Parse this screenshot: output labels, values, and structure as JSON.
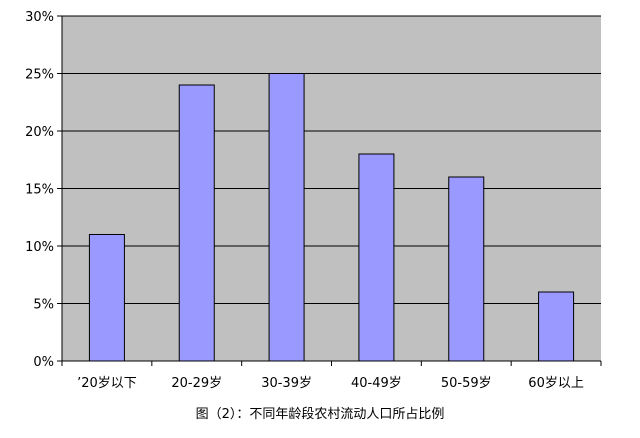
{
  "chart_data": {
    "type": "bar",
    "categories": [
      "’20岁以下",
      "20-29岁",
      "30-39岁",
      "40-49岁",
      "50-59岁",
      "60岁以上"
    ],
    "values": [
      11,
      24,
      25,
      18,
      16,
      6
    ],
    "y_ticks": [
      "0%",
      "5%",
      "10%",
      "15%",
      "20%",
      "25%",
      "30%"
    ],
    "ylim": [
      0,
      30
    ],
    "caption": "图（2）：不同年龄段农村流动人口所占比例",
    "grid": true,
    "plot_background": "#c0c0c0",
    "bar_color": "#9999ff",
    "bar_stroke": "#000000"
  }
}
